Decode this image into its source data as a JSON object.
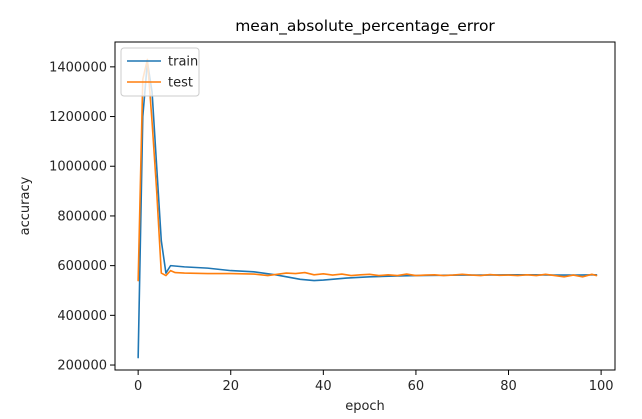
{
  "chart_data": {
    "type": "line",
    "title": "mean_absolute_percentage_error",
    "xlabel": "epoch",
    "ylabel": "accuracy",
    "xlim": [
      -5,
      103
    ],
    "ylim": [
      180000,
      1500000
    ],
    "xticks": [
      0,
      20,
      40,
      60,
      80,
      100
    ],
    "yticks": [
      200000,
      400000,
      600000,
      800000,
      1000000,
      1200000,
      1400000
    ],
    "xtick_labels": [
      "0",
      "20",
      "40",
      "60",
      "80",
      "100"
    ],
    "ytick_labels": [
      "200000",
      "400000",
      "600000",
      "800000",
      "1000000",
      "1200000",
      "1400000"
    ],
    "grid": false,
    "legend_position": "upper-left",
    "series": [
      {
        "name": "train",
        "color": "#1f77b4",
        "x": [
          0,
          1,
          2,
          3,
          4,
          5,
          6,
          7,
          10,
          15,
          20,
          25,
          30,
          35,
          38,
          40,
          45,
          50,
          55,
          60,
          65,
          70,
          75,
          80,
          85,
          90,
          95,
          99
        ],
        "y": [
          230000,
          1200000,
          1420000,
          1300000,
          1000000,
          700000,
          570000,
          600000,
          595000,
          590000,
          580000,
          575000,
          562000,
          545000,
          540000,
          542000,
          550000,
          555000,
          558000,
          560000,
          561000,
          562000,
          562000,
          563000,
          563000,
          562000,
          562000,
          563000
        ]
      },
      {
        "name": "test",
        "color": "#ff7f0e",
        "x": [
          0,
          1,
          2,
          3,
          4,
          5,
          6,
          7,
          8,
          10,
          15,
          20,
          25,
          28,
          30,
          32,
          34,
          36,
          38,
          40,
          42,
          44,
          46,
          48,
          50,
          52,
          54,
          56,
          58,
          60,
          62,
          64,
          66,
          68,
          70,
          72,
          74,
          76,
          78,
          80,
          82,
          84,
          86,
          88,
          90,
          92,
          94,
          96,
          98,
          99
        ],
        "y": [
          540000,
          1350000,
          1430000,
          1180000,
          900000,
          570000,
          560000,
          580000,
          572000,
          570000,
          568000,
          568000,
          566000,
          560000,
          565000,
          570000,
          568000,
          572000,
          563000,
          567000,
          562000,
          566000,
          560000,
          563000,
          565000,
          560000,
          563000,
          560000,
          566000,
          560000,
          562000,
          563000,
          560000,
          562000,
          565000,
          562000,
          560000,
          564000,
          561000,
          562000,
          560000,
          563000,
          560000,
          565000,
          560000,
          555000,
          562000,
          555000,
          565000,
          560000
        ]
      }
    ]
  }
}
